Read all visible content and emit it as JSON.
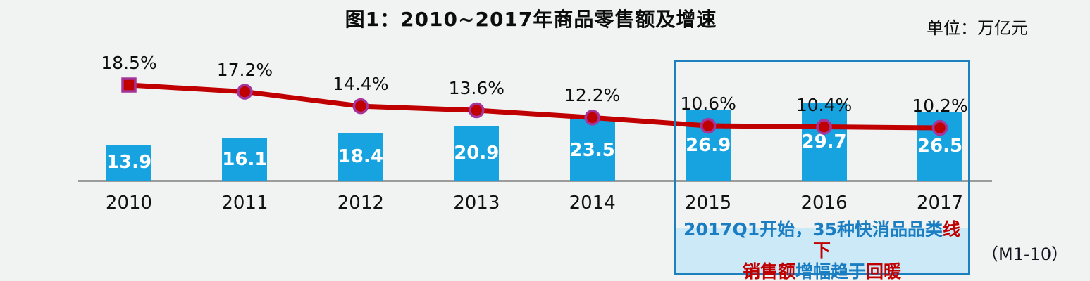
{
  "header": {
    "title": "图1：2010~2017年商品零售额及增速",
    "unit_label": "单位：万亿元"
  },
  "footer_note": "（M1-10）",
  "colors": {
    "background": "#F1F2F2",
    "bar": "#17A3DF",
    "bar_value_text": "#FFFFFF",
    "line": "#C00000",
    "marker_fill": "#C00000",
    "marker_ring": "#A3359B",
    "axis": "#9C9C9C",
    "highlight_border": "#1D80BE",
    "annotation_bg": "#CCE9F8",
    "annotation_blue": "#1B7EC2",
    "annotation_red": "#C00000"
  },
  "chart_data": {
    "type": "bar",
    "title": "图1：2010~2017年商品零售额及增速",
    "unit": "万亿元",
    "categories": [
      "2010",
      "2011",
      "2012",
      "2013",
      "2014",
      "2015",
      "2016",
      "2017"
    ],
    "series": [
      {
        "name": "商品零售额",
        "type": "bar",
        "values": [
          13.9,
          16.1,
          18.4,
          20.9,
          23.5,
          26.9,
          29.7,
          26.5
        ],
        "labels": [
          "13.9",
          "16.1",
          "18.4",
          "20.9",
          "23.5",
          "26.9",
          "29.7",
          "26.5"
        ],
        "color": "#17A3DF"
      },
      {
        "name": "增速",
        "type": "line",
        "values": [
          18.5,
          17.2,
          14.4,
          13.6,
          12.2,
          10.6,
          10.4,
          10.2
        ],
        "labels": [
          "18.5%",
          "17.2%",
          "14.4%",
          "13.6%",
          "12.2%",
          "10.6%",
          "10.4%",
          "10.2%"
        ],
        "color": "#C00000"
      }
    ],
    "highlighted_categories": [
      "2015",
      "2016",
      "2017"
    ],
    "annotation": {
      "segments": [
        {
          "text": "2017Q1开始，35种快消品品类",
          "color": "blue"
        },
        {
          "text": "线下",
          "color": "red"
        },
        {
          "br": true
        },
        {
          "text": "销售额",
          "color": "red"
        },
        {
          "text": "增幅趋于",
          "color": "blue"
        },
        {
          "text": "回暖",
          "color": "red"
        }
      ]
    },
    "grid": false,
    "legend": false,
    "ylim_bar": [
      0,
      35
    ],
    "ylim_pct": [
      0,
      20
    ]
  }
}
